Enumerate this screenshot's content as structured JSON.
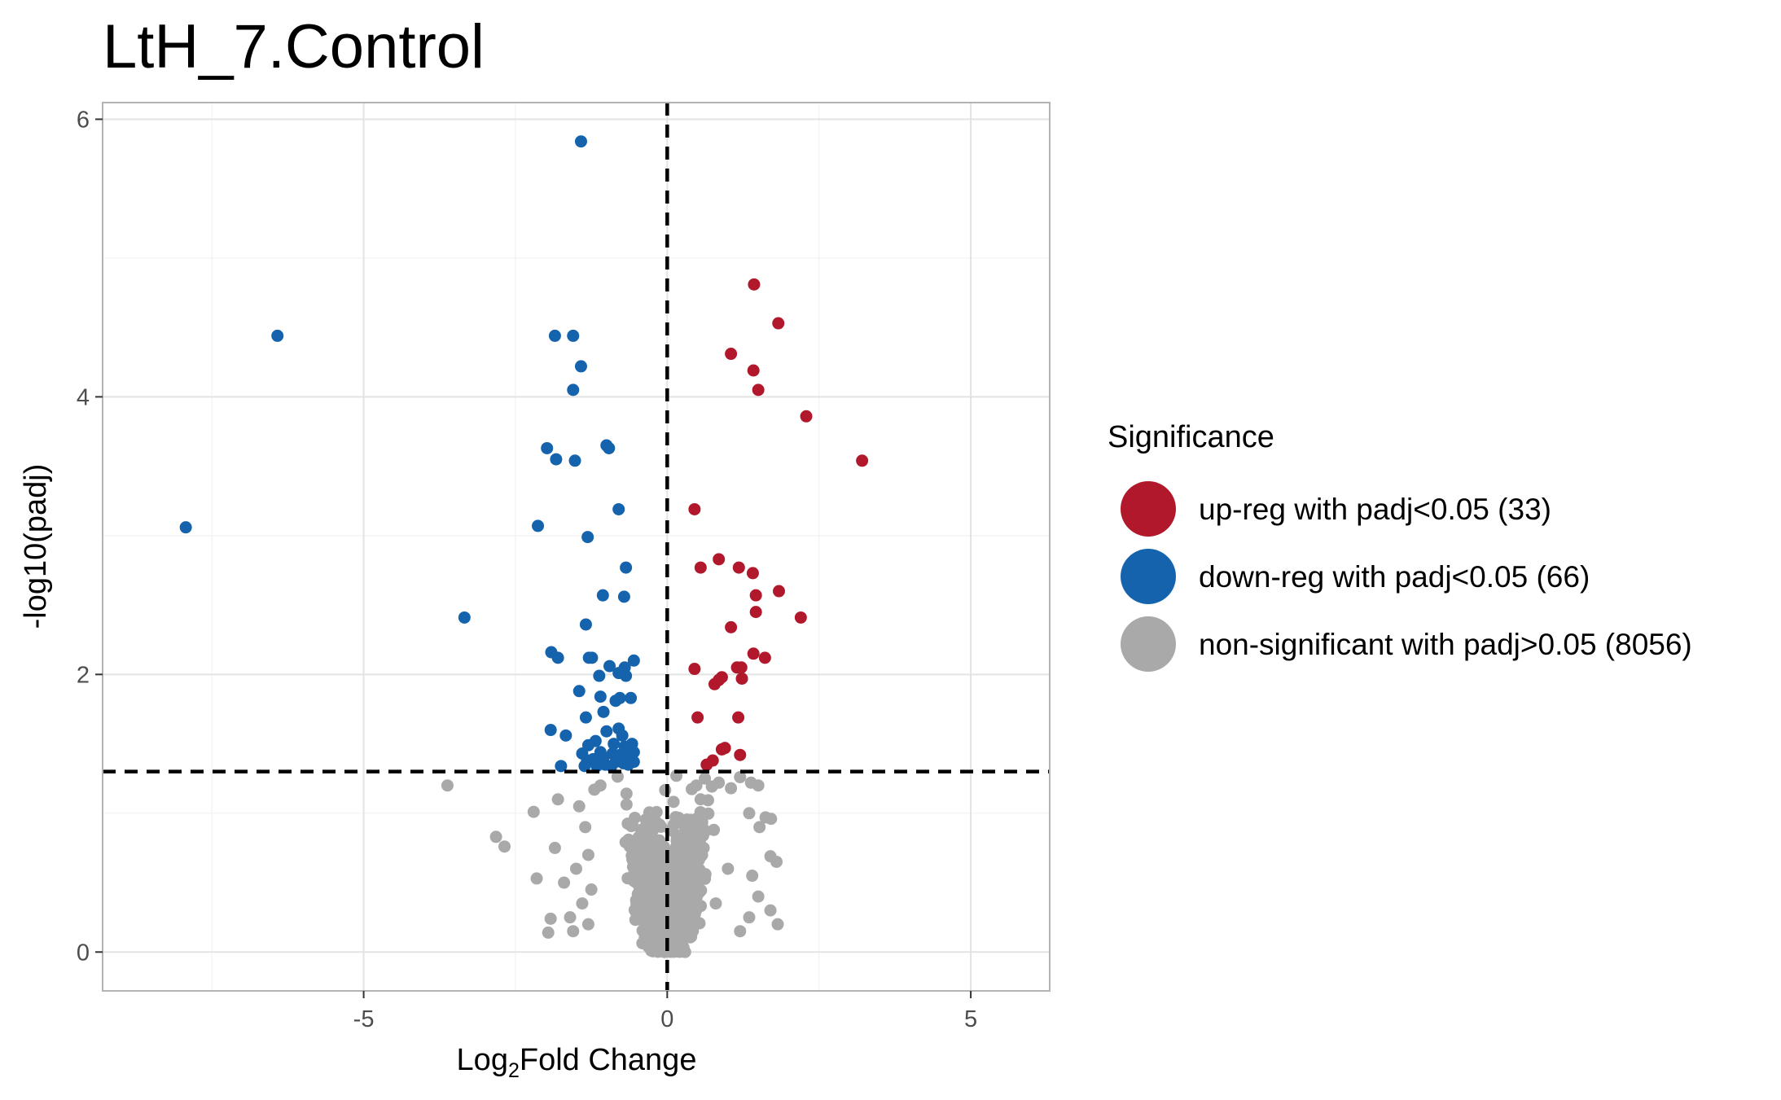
{
  "chart_data": {
    "type": "scatter",
    "title": "LtH_7.Control",
    "xlabel": {
      "prefix": "Log",
      "subscript": "2",
      "suffix": "Fold Change"
    },
    "ylabel": "-log10(padj)",
    "xlim": [
      -9.3,
      6.3
    ],
    "ylim": [
      -0.28,
      6.12
    ],
    "x_ticks": [
      -5,
      0,
      5
    ],
    "x_tick_labels": [
      "-5",
      "0",
      "5"
    ],
    "y_ticks": [
      0,
      2,
      4,
      6
    ],
    "y_tick_labels": [
      "0",
      "2",
      "4",
      "6"
    ],
    "grid": true,
    "thresholds": {
      "log2fc": 0,
      "neg_log10_padj": 1.3
    },
    "legend": {
      "title": "Significance",
      "position": "right",
      "entries": [
        {
          "label": "up-reg with padj<0.05 (33)",
          "color": "#b2182b"
        },
        {
          "label": "down-reg with padj<0.05 (66)",
          "color": "#1563ad"
        },
        {
          "label": "non-significant with padj>0.05 (8056)",
          "color": "#a9a9a9"
        }
      ]
    },
    "series": [
      {
        "name": "up-reg with padj<0.05 (33)",
        "color": "#b2182b",
        "points": [
          [
            1.43,
            4.81
          ],
          [
            1.83,
            4.53
          ],
          [
            1.05,
            4.31
          ],
          [
            1.42,
            4.19
          ],
          [
            1.5,
            4.05
          ],
          [
            2.29,
            3.86
          ],
          [
            3.21,
            3.54
          ],
          [
            0.45,
            3.19
          ],
          [
            0.85,
            2.83
          ],
          [
            0.55,
            2.77
          ],
          [
            1.18,
            2.77
          ],
          [
            1.41,
            2.73
          ],
          [
            1.84,
            2.6
          ],
          [
            1.46,
            2.57
          ],
          [
            1.46,
            2.45
          ],
          [
            2.2,
            2.41
          ],
          [
            1.05,
            2.34
          ],
          [
            1.42,
            2.15
          ],
          [
            1.61,
            2.12
          ],
          [
            1.15,
            2.05
          ],
          [
            1.22,
            2.05
          ],
          [
            0.45,
            2.04
          ],
          [
            0.9,
            1.98
          ],
          [
            0.85,
            1.96
          ],
          [
            1.23,
            1.97
          ],
          [
            0.78,
            1.93
          ],
          [
            0.5,
            1.69
          ],
          [
            1.17,
            1.69
          ],
          [
            0.95,
            1.47
          ],
          [
            0.9,
            1.46
          ],
          [
            1.2,
            1.42
          ],
          [
            0.75,
            1.38
          ],
          [
            0.65,
            1.35
          ]
        ]
      },
      {
        "name": "down-reg with padj<0.05 (66)",
        "color": "#1563ad",
        "points": [
          [
            -1.42,
            5.84
          ],
          [
            -6.42,
            4.44
          ],
          [
            -1.85,
            4.44
          ],
          [
            -1.55,
            4.44
          ],
          [
            -1.42,
            4.22
          ],
          [
            -1.55,
            4.05
          ],
          [
            -7.93,
            3.06
          ],
          [
            -1.98,
            3.63
          ],
          [
            -1.83,
            3.55
          ],
          [
            -1.52,
            3.54
          ],
          [
            -1.0,
            3.65
          ],
          [
            -0.96,
            3.63
          ],
          [
            -0.8,
            3.19
          ],
          [
            -2.13,
            3.07
          ],
          [
            -1.31,
            2.99
          ],
          [
            -0.68,
            2.77
          ],
          [
            -3.34,
            2.41
          ],
          [
            -1.06,
            2.57
          ],
          [
            -0.71,
            2.56
          ],
          [
            -1.34,
            2.36
          ],
          [
            -1.91,
            2.16
          ],
          [
            -1.8,
            2.12
          ],
          [
            -1.29,
            2.12
          ],
          [
            -1.24,
            2.12
          ],
          [
            -0.95,
            2.06
          ],
          [
            -0.8,
            2.01
          ],
          [
            -0.7,
            2.05
          ],
          [
            -0.55,
            2.1
          ],
          [
            -1.12,
            1.99
          ],
          [
            -0.68,
            1.99
          ],
          [
            -1.45,
            1.88
          ],
          [
            -1.1,
            1.84
          ],
          [
            -0.85,
            1.81
          ],
          [
            -0.78,
            1.83
          ],
          [
            -0.6,
            1.83
          ],
          [
            -1.05,
            1.73
          ],
          [
            -1.34,
            1.69
          ],
          [
            -1.92,
            1.6
          ],
          [
            -1.67,
            1.56
          ],
          [
            -1.0,
            1.59
          ],
          [
            -0.8,
            1.61
          ],
          [
            -0.74,
            1.56
          ],
          [
            -1.18,
            1.52
          ],
          [
            -1.3,
            1.49
          ],
          [
            -0.88,
            1.5
          ],
          [
            -0.7,
            1.48
          ],
          [
            -0.58,
            1.5
          ],
          [
            -1.4,
            1.43
          ],
          [
            -1.1,
            1.44
          ],
          [
            -0.9,
            1.43
          ],
          [
            -0.78,
            1.42
          ],
          [
            -0.66,
            1.42
          ],
          [
            -0.55,
            1.44
          ],
          [
            -1.32,
            1.38
          ],
          [
            -1.22,
            1.39
          ],
          [
            -1.05,
            1.4
          ],
          [
            -0.85,
            1.37
          ],
          [
            -0.6,
            1.38
          ],
          [
            -1.75,
            1.34
          ],
          [
            -1.36,
            1.34
          ],
          [
            -1.16,
            1.34
          ],
          [
            -1.02,
            1.35
          ],
          [
            -0.92,
            1.34
          ],
          [
            -0.72,
            1.36
          ],
          [
            -0.64,
            1.35
          ],
          [
            -0.55,
            1.37
          ]
        ]
      },
      {
        "name": "non-significant with padj>0.05 (8056)",
        "color": "#a9a9a9",
        "note_points": "representative subset of the dense non-significant cloud",
        "points": [
          [
            -3.62,
            1.2
          ],
          [
            -2.82,
            0.83
          ],
          [
            -2.68,
            0.76
          ],
          [
            -2.2,
            1.01
          ],
          [
            -2.15,
            0.53
          ],
          [
            -1.8,
            1.1
          ],
          [
            -1.85,
            0.75
          ],
          [
            -1.7,
            0.5
          ],
          [
            -1.92,
            0.24
          ],
          [
            -1.96,
            0.14
          ],
          [
            -1.6,
            0.25
          ],
          [
            -1.45,
            1.05
          ],
          [
            -1.35,
            0.9
          ],
          [
            -1.3,
            0.7
          ],
          [
            -1.25,
            0.45
          ],
          [
            -1.2,
            1.17
          ],
          [
            -1.1,
            1.2
          ],
          [
            -1.5,
            0.6
          ],
          [
            -1.4,
            0.35
          ],
          [
            -1.3,
            0.2
          ],
          [
            -1.55,
            0.15
          ],
          [
            0.48,
            1.2
          ],
          [
            0.62,
            1.25
          ],
          [
            0.55,
            1.1
          ],
          [
            0.85,
            1.22
          ],
          [
            1.05,
            1.18
          ],
          [
            1.2,
            1.26
          ],
          [
            1.38,
            1.22
          ],
          [
            1.5,
            1.2
          ],
          [
            1.35,
            1.0
          ],
          [
            1.62,
            0.97
          ],
          [
            1.52,
            0.9
          ],
          [
            1.71,
            0.96
          ],
          [
            1.7,
            0.69
          ],
          [
            1.8,
            0.65
          ],
          [
            1.7,
            0.3
          ],
          [
            1.82,
            0.2
          ],
          [
            1.5,
            0.4
          ],
          [
            1.4,
            0.55
          ],
          [
            1.35,
            0.25
          ],
          [
            1.2,
            0.15
          ],
          [
            1.0,
            0.6
          ],
          [
            0.8,
            0.35
          ],
          [
            0.6,
            0.75
          ],
          [
            0.45,
            0.5
          ]
        ]
      }
    ]
  }
}
